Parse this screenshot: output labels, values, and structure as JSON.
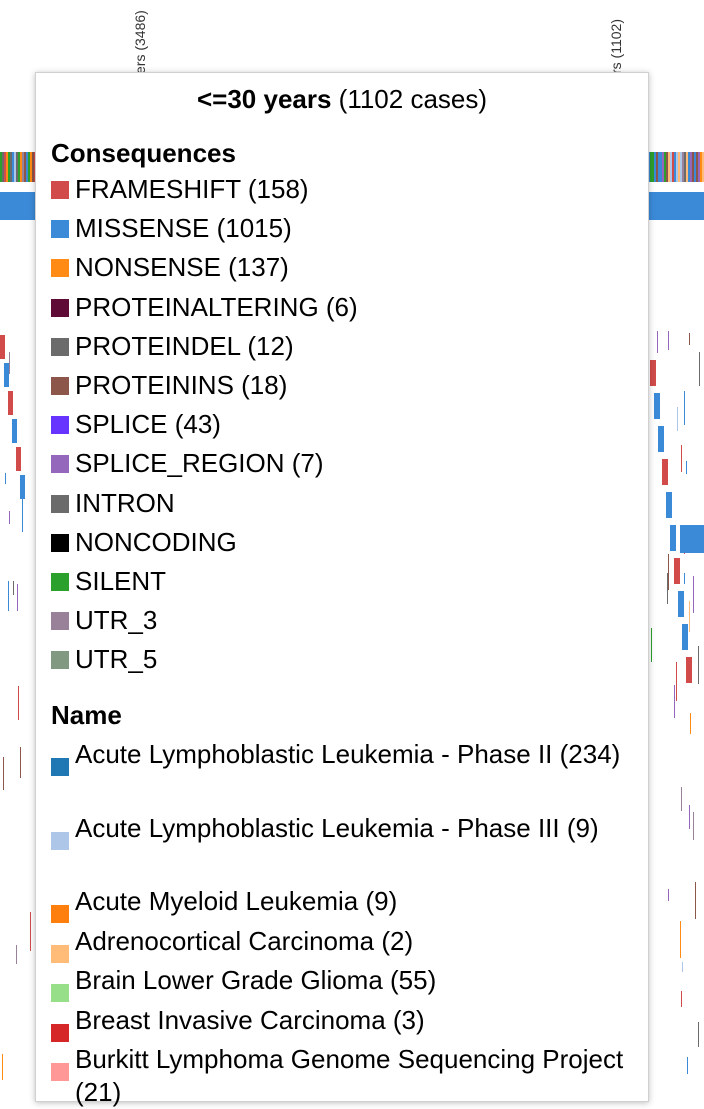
{
  "background": {
    "column_label_left": "ers (3486)",
    "column_label_right": "rs (1102)"
  },
  "tooltip": {
    "title_bold": "<=30 years",
    "title_rest": " (1102 cases)",
    "consequences_heading": "Consequences",
    "consequences": [
      {
        "label": "FRAMESHIFT (158)",
        "color": "#d14b4b",
        "icon": "frameshift-swatch"
      },
      {
        "label": "MISSENSE (1015)",
        "color": "#3b8ad8",
        "icon": "missense-swatch"
      },
      {
        "label": "NONSENSE (137)",
        "color": "#ff8a14",
        "icon": "nonsense-swatch"
      },
      {
        "label": "PROTEINALTERING (6)",
        "color": "#5e0c35",
        "icon": "proteinaltering-swatch"
      },
      {
        "label": "PROTEINDEL (12)",
        "color": "#6b6b6b",
        "icon": "proteindel-swatch"
      },
      {
        "label": "PROTEININS (18)",
        "color": "#8c564b",
        "icon": "proteinins-swatch"
      },
      {
        "label": "SPLICE (43)",
        "color": "#6633ff",
        "icon": "splice-swatch"
      },
      {
        "label": "SPLICE_REGION (7)",
        "color": "#9467bd",
        "icon": "splice-region-swatch"
      },
      {
        "label": "INTRON",
        "color": "#6b6b6b",
        "icon": "intron-swatch"
      },
      {
        "label": "NONCODING",
        "color": "#000000",
        "icon": "noncoding-swatch"
      },
      {
        "label": "SILENT",
        "color": "#2ca02c",
        "icon": "silent-swatch"
      },
      {
        "label": "UTR_3",
        "color": "#998199",
        "icon": "utr3-swatch"
      },
      {
        "label": "UTR_5",
        "color": "#819981",
        "icon": "utr5-swatch"
      }
    ],
    "name_heading": "Name",
    "names": [
      {
        "label": "Acute Lymphoblastic Leukemia - Phase II (234)",
        "color": "#1f77b4",
        "icon": "all-phase2-swatch"
      },
      {
        "label": "Acute Lymphoblastic Leukemia - Phase III (9)",
        "color": "#aec7e8",
        "icon": "all-phase3-swatch"
      },
      {
        "label": "Acute Myeloid Leukemia (9)",
        "color": "#ff7f0e",
        "icon": "aml-swatch"
      },
      {
        "label": "Adrenocortical Carcinoma (2)",
        "color": "#ffbb78",
        "icon": "adrenocortical-swatch"
      },
      {
        "label": "Brain Lower Grade Glioma (55)",
        "color": "#98df8a",
        "icon": "brain-lgg-swatch"
      },
      {
        "label": "Breast Invasive Carcinoma (3)",
        "color": "#d62728",
        "icon": "breast-swatch"
      },
      {
        "label": "Burkitt Lymphoma Genome Sequencing Project (21)",
        "color": "#ff9896",
        "icon": "burkitt-swatch"
      }
    ]
  }
}
